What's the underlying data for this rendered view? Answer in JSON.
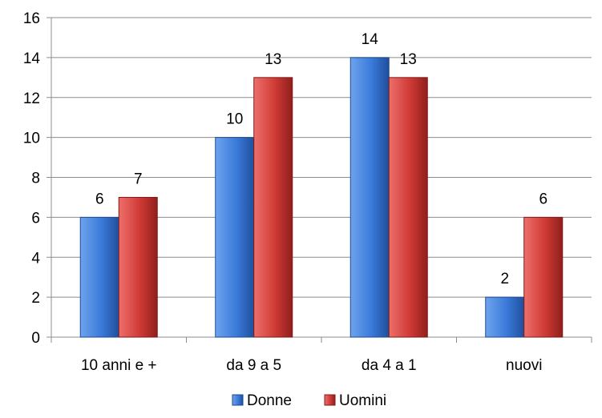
{
  "chart_data": {
    "type": "bar",
    "categories": [
      "10 anni e +",
      "da 9 a 5",
      "da 4 a 1",
      "nuovi"
    ],
    "series": [
      {
        "name": "Donne",
        "values": [
          6,
          10,
          14,
          2
        ],
        "color": "#2f6fc9"
      },
      {
        "name": "Uomini",
        "values": [
          7,
          13,
          13,
          6
        ],
        "color": "#c9302c"
      }
    ],
    "ylim": [
      0,
      16
    ],
    "yticks": [
      0,
      2,
      4,
      6,
      8,
      10,
      12,
      14,
      16
    ],
    "grid": true,
    "legend": "bottom",
    "data_labels": true
  }
}
